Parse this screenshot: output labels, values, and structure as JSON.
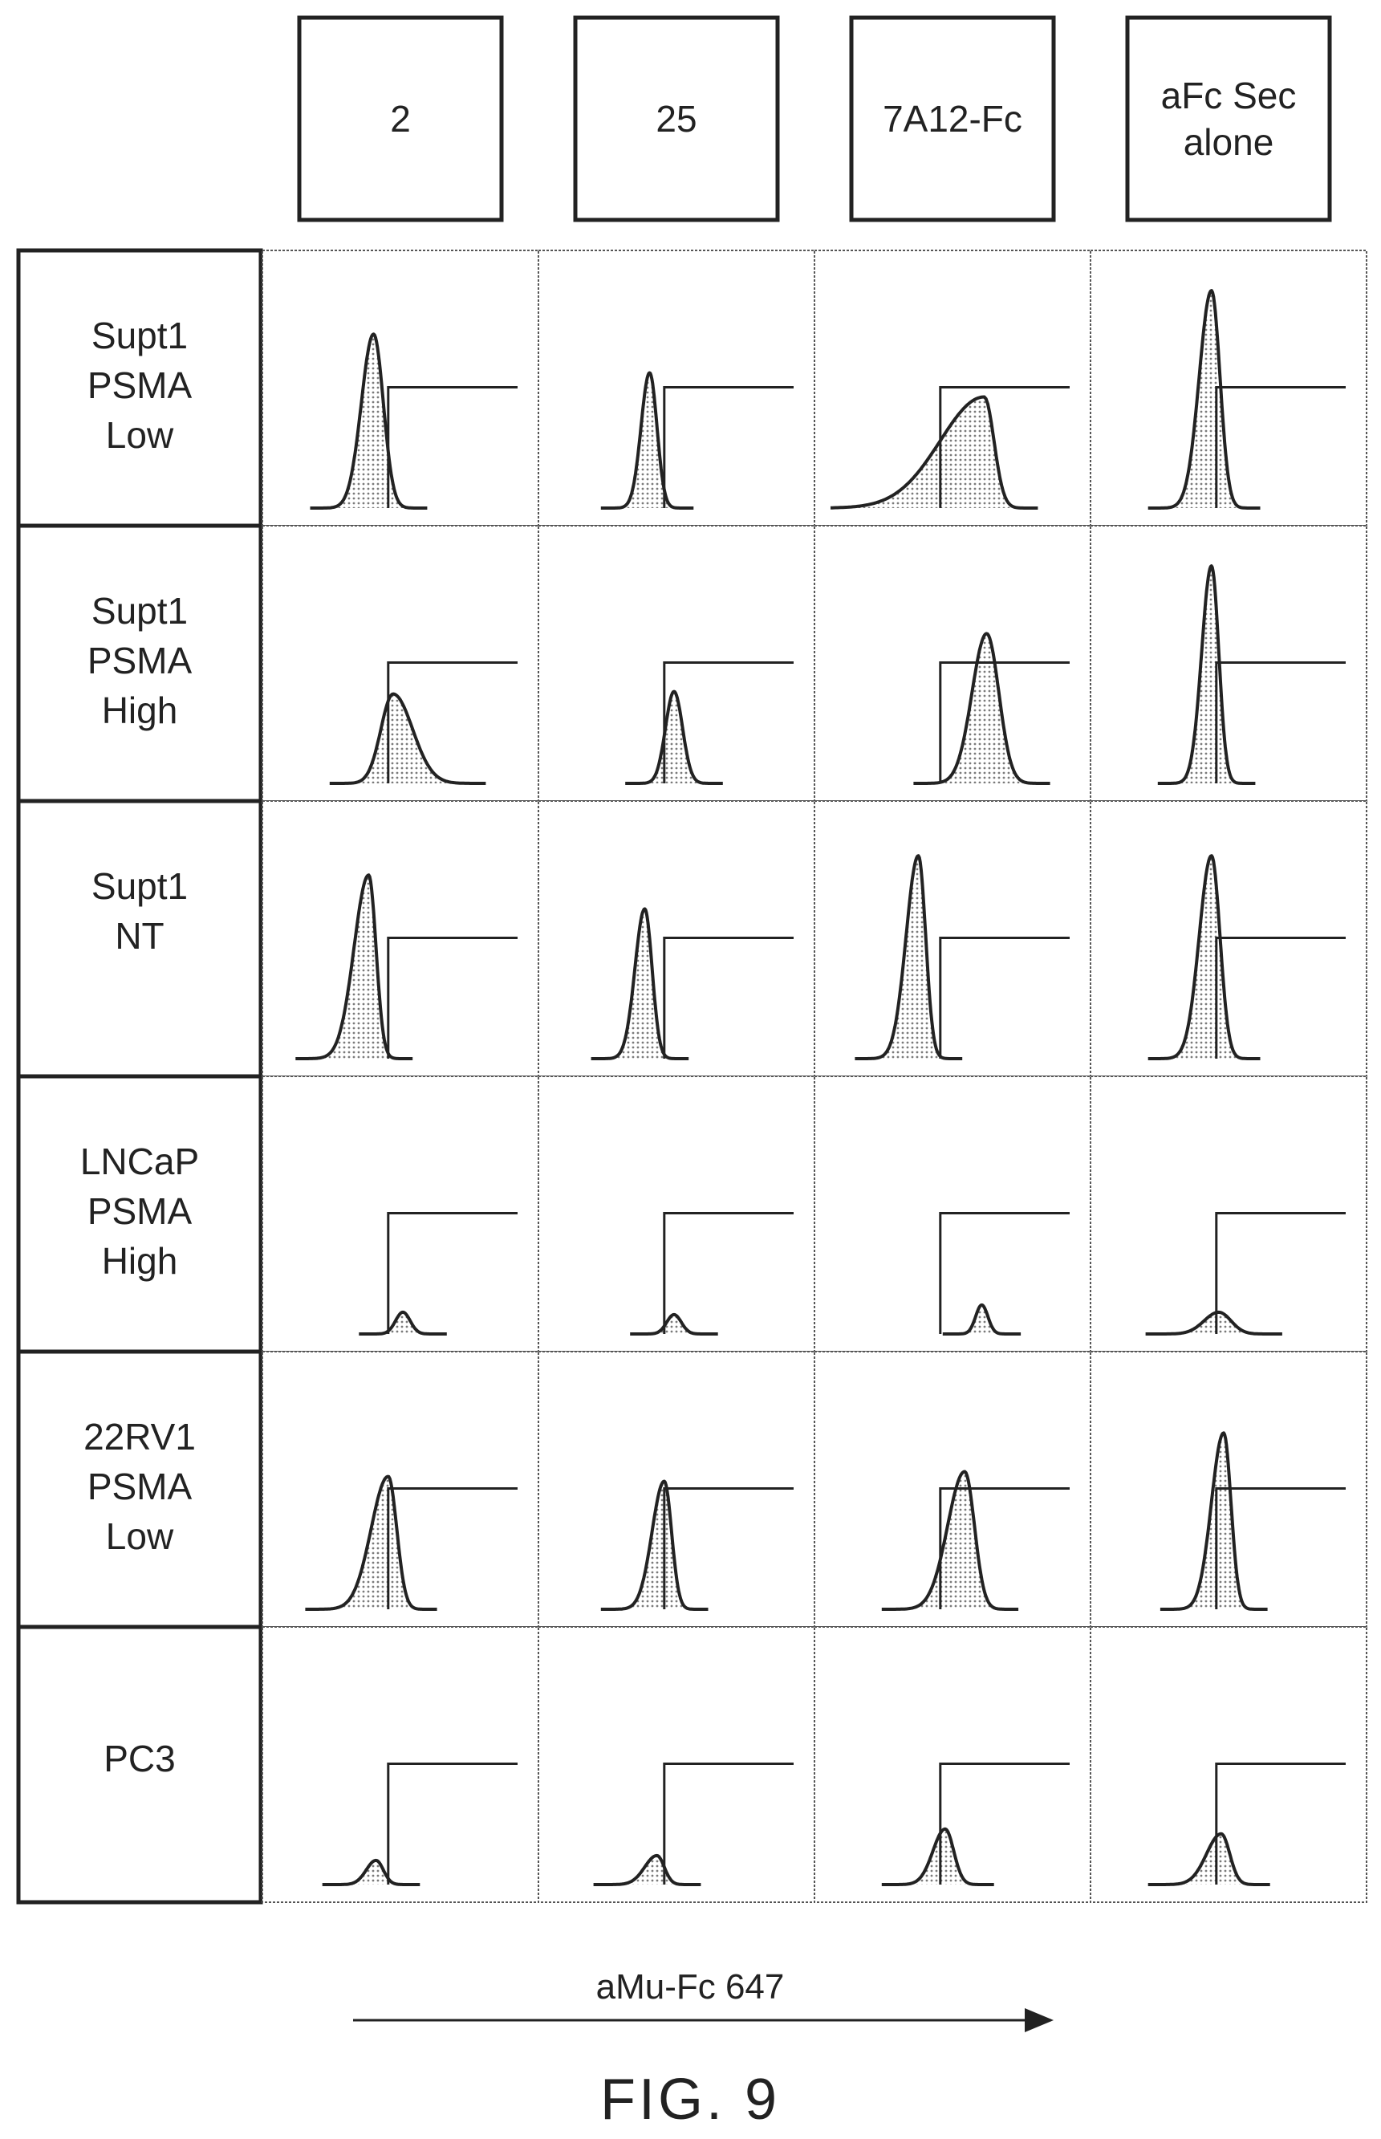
{
  "figure": {
    "caption": "FIG. 9",
    "x_axis_label": "aMu-Fc 647",
    "line_color": "#222222",
    "fill_color": "#bdbdbd",
    "background": "#ffffff"
  },
  "chart_data": {
    "type": "histogram-grid",
    "title": "",
    "xlabel": "aMu-Fc 647",
    "columns": [
      [
        "2"
      ],
      [
        "25"
      ],
      [
        "7A12-Fc"
      ],
      [
        "aFc Sec",
        "alone"
      ]
    ],
    "rows": [
      [
        "Supt1",
        "PSMA",
        "Low"
      ],
      [
        "Supt1",
        "PSMA",
        "High"
      ],
      [
        "Supt1",
        "NT"
      ],
      [
        "LNCaP",
        "PSMA",
        "High"
      ],
      [
        "22RV1",
        "PSMA",
        "Low"
      ],
      [
        "PC3"
      ]
    ],
    "x_range": [
      0,
      1
    ],
    "y_range": [
      0,
      1
    ],
    "gate_start": 0.45,
    "gate_height": 0.5,
    "panels": [
      [
        {
          "peak": 0.39,
          "height": 0.72,
          "width_left": 0.05,
          "width_right": 0.04
        },
        {
          "peak": 0.39,
          "height": 0.56,
          "width_left": 0.035,
          "width_right": 0.03
        },
        {
          "peak": 0.63,
          "height": 0.46,
          "width_left": 0.18,
          "width_right": 0.04
        },
        {
          "peak": 0.43,
          "height": 0.9,
          "width_left": 0.05,
          "width_right": 0.035
        }
      ],
      [
        {
          "peak": 0.47,
          "height": 0.37,
          "width_left": 0.05,
          "width_right": 0.08
        },
        {
          "peak": 0.49,
          "height": 0.38,
          "width_left": 0.035,
          "width_right": 0.035
        },
        {
          "peak": 0.64,
          "height": 0.62,
          "width_left": 0.06,
          "width_right": 0.05
        },
        {
          "peak": 0.43,
          "height": 0.9,
          "width_left": 0.04,
          "width_right": 0.03
        }
      ],
      [
        {
          "peak": 0.37,
          "height": 0.76,
          "width_left": 0.06,
          "width_right": 0.03
        },
        {
          "peak": 0.37,
          "height": 0.62,
          "width_left": 0.04,
          "width_right": 0.03
        },
        {
          "peak": 0.36,
          "height": 0.84,
          "width_left": 0.05,
          "width_right": 0.03
        },
        {
          "peak": 0.43,
          "height": 0.84,
          "width_left": 0.05,
          "width_right": 0.035
        }
      ],
      [
        {
          "peak": 0.51,
          "height": 0.09,
          "width_left": 0.03,
          "width_right": 0.03
        },
        {
          "peak": 0.49,
          "height": 0.08,
          "width_left": 0.03,
          "width_right": 0.03
        },
        {
          "peak": 0.62,
          "height": 0.12,
          "width_left": 0.025,
          "width_right": 0.025
        },
        {
          "peak": 0.46,
          "height": 0.09,
          "width_left": 0.06,
          "width_right": 0.05
        }
      ],
      [
        {
          "peak": 0.45,
          "height": 0.55,
          "width_left": 0.07,
          "width_right": 0.035
        },
        {
          "peak": 0.45,
          "height": 0.53,
          "width_left": 0.05,
          "width_right": 0.03
        },
        {
          "peak": 0.55,
          "height": 0.57,
          "width_left": 0.07,
          "width_right": 0.04
        },
        {
          "peak": 0.48,
          "height": 0.73,
          "width_left": 0.05,
          "width_right": 0.03
        }
      ],
      [
        {
          "peak": 0.4,
          "height": 0.1,
          "width_left": 0.04,
          "width_right": 0.03
        },
        {
          "peak": 0.42,
          "height": 0.12,
          "width_left": 0.05,
          "width_right": 0.03
        },
        {
          "peak": 0.47,
          "height": 0.23,
          "width_left": 0.05,
          "width_right": 0.035
        },
        {
          "peak": 0.47,
          "height": 0.21,
          "width_left": 0.06,
          "width_right": 0.035
        }
      ]
    ]
  }
}
